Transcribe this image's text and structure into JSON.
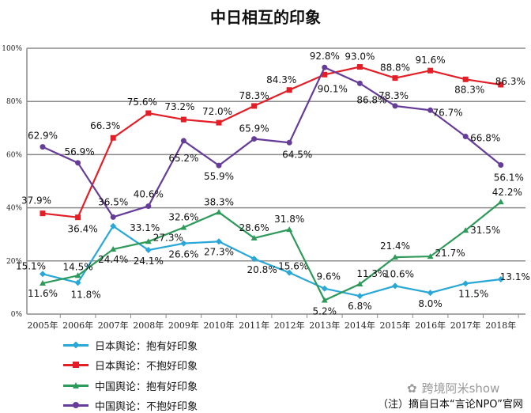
{
  "chart_data": {
    "type": "line",
    "title": "中日相互的印象",
    "categories": [
      "2005年",
      "2006年",
      "2007年",
      "2008年",
      "2009年",
      "2010年",
      "2011年",
      "2012年",
      "2013年",
      "2014年",
      "2015年",
      "2016年",
      "2017年",
      "2018年"
    ],
    "ylim": [
      0,
      100
    ],
    "yticks": [
      "0%",
      "20%",
      "40%",
      "60%",
      "80%",
      "100%"
    ],
    "grid": true,
    "legend_position": "bottom-left",
    "series": [
      {
        "name": "日本舆论：抱有好印象",
        "color": "#29a8d8",
        "marker": "diamond",
        "values": [
          15.1,
          11.8,
          33.1,
          24.1,
          26.6,
          27.3,
          20.8,
          15.6,
          9.6,
          6.8,
          10.6,
          8.0,
          11.5,
          13.1
        ]
      },
      {
        "name": "日本舆论：不抱好印象",
        "color": "#e41e26",
        "marker": "square",
        "values": [
          37.9,
          36.4,
          66.3,
          75.6,
          73.2,
          72.0,
          78.3,
          84.3,
          90.1,
          93.0,
          88.8,
          91.6,
          88.3,
          86.3
        ]
      },
      {
        "name": "中国舆论：抱有好印象",
        "color": "#2e9a5a",
        "marker": "triangle",
        "values": [
          11.6,
          14.5,
          24.4,
          27.3,
          32.6,
          38.3,
          28.6,
          31.8,
          5.2,
          11.3,
          21.4,
          21.7,
          31.5,
          42.2
        ]
      },
      {
        "name": "中国舆论：不抱好印象",
        "color": "#663c99",
        "marker": "circle",
        "values": [
          62.9,
          56.9,
          36.5,
          40.6,
          65.2,
          55.9,
          65.9,
          64.5,
          92.8,
          86.8,
          78.3,
          76.7,
          66.8,
          56.1
        ]
      }
    ]
  },
  "watermark": "跨境阿米show",
  "note": "（注）摘自日本“言论NPO”官网"
}
